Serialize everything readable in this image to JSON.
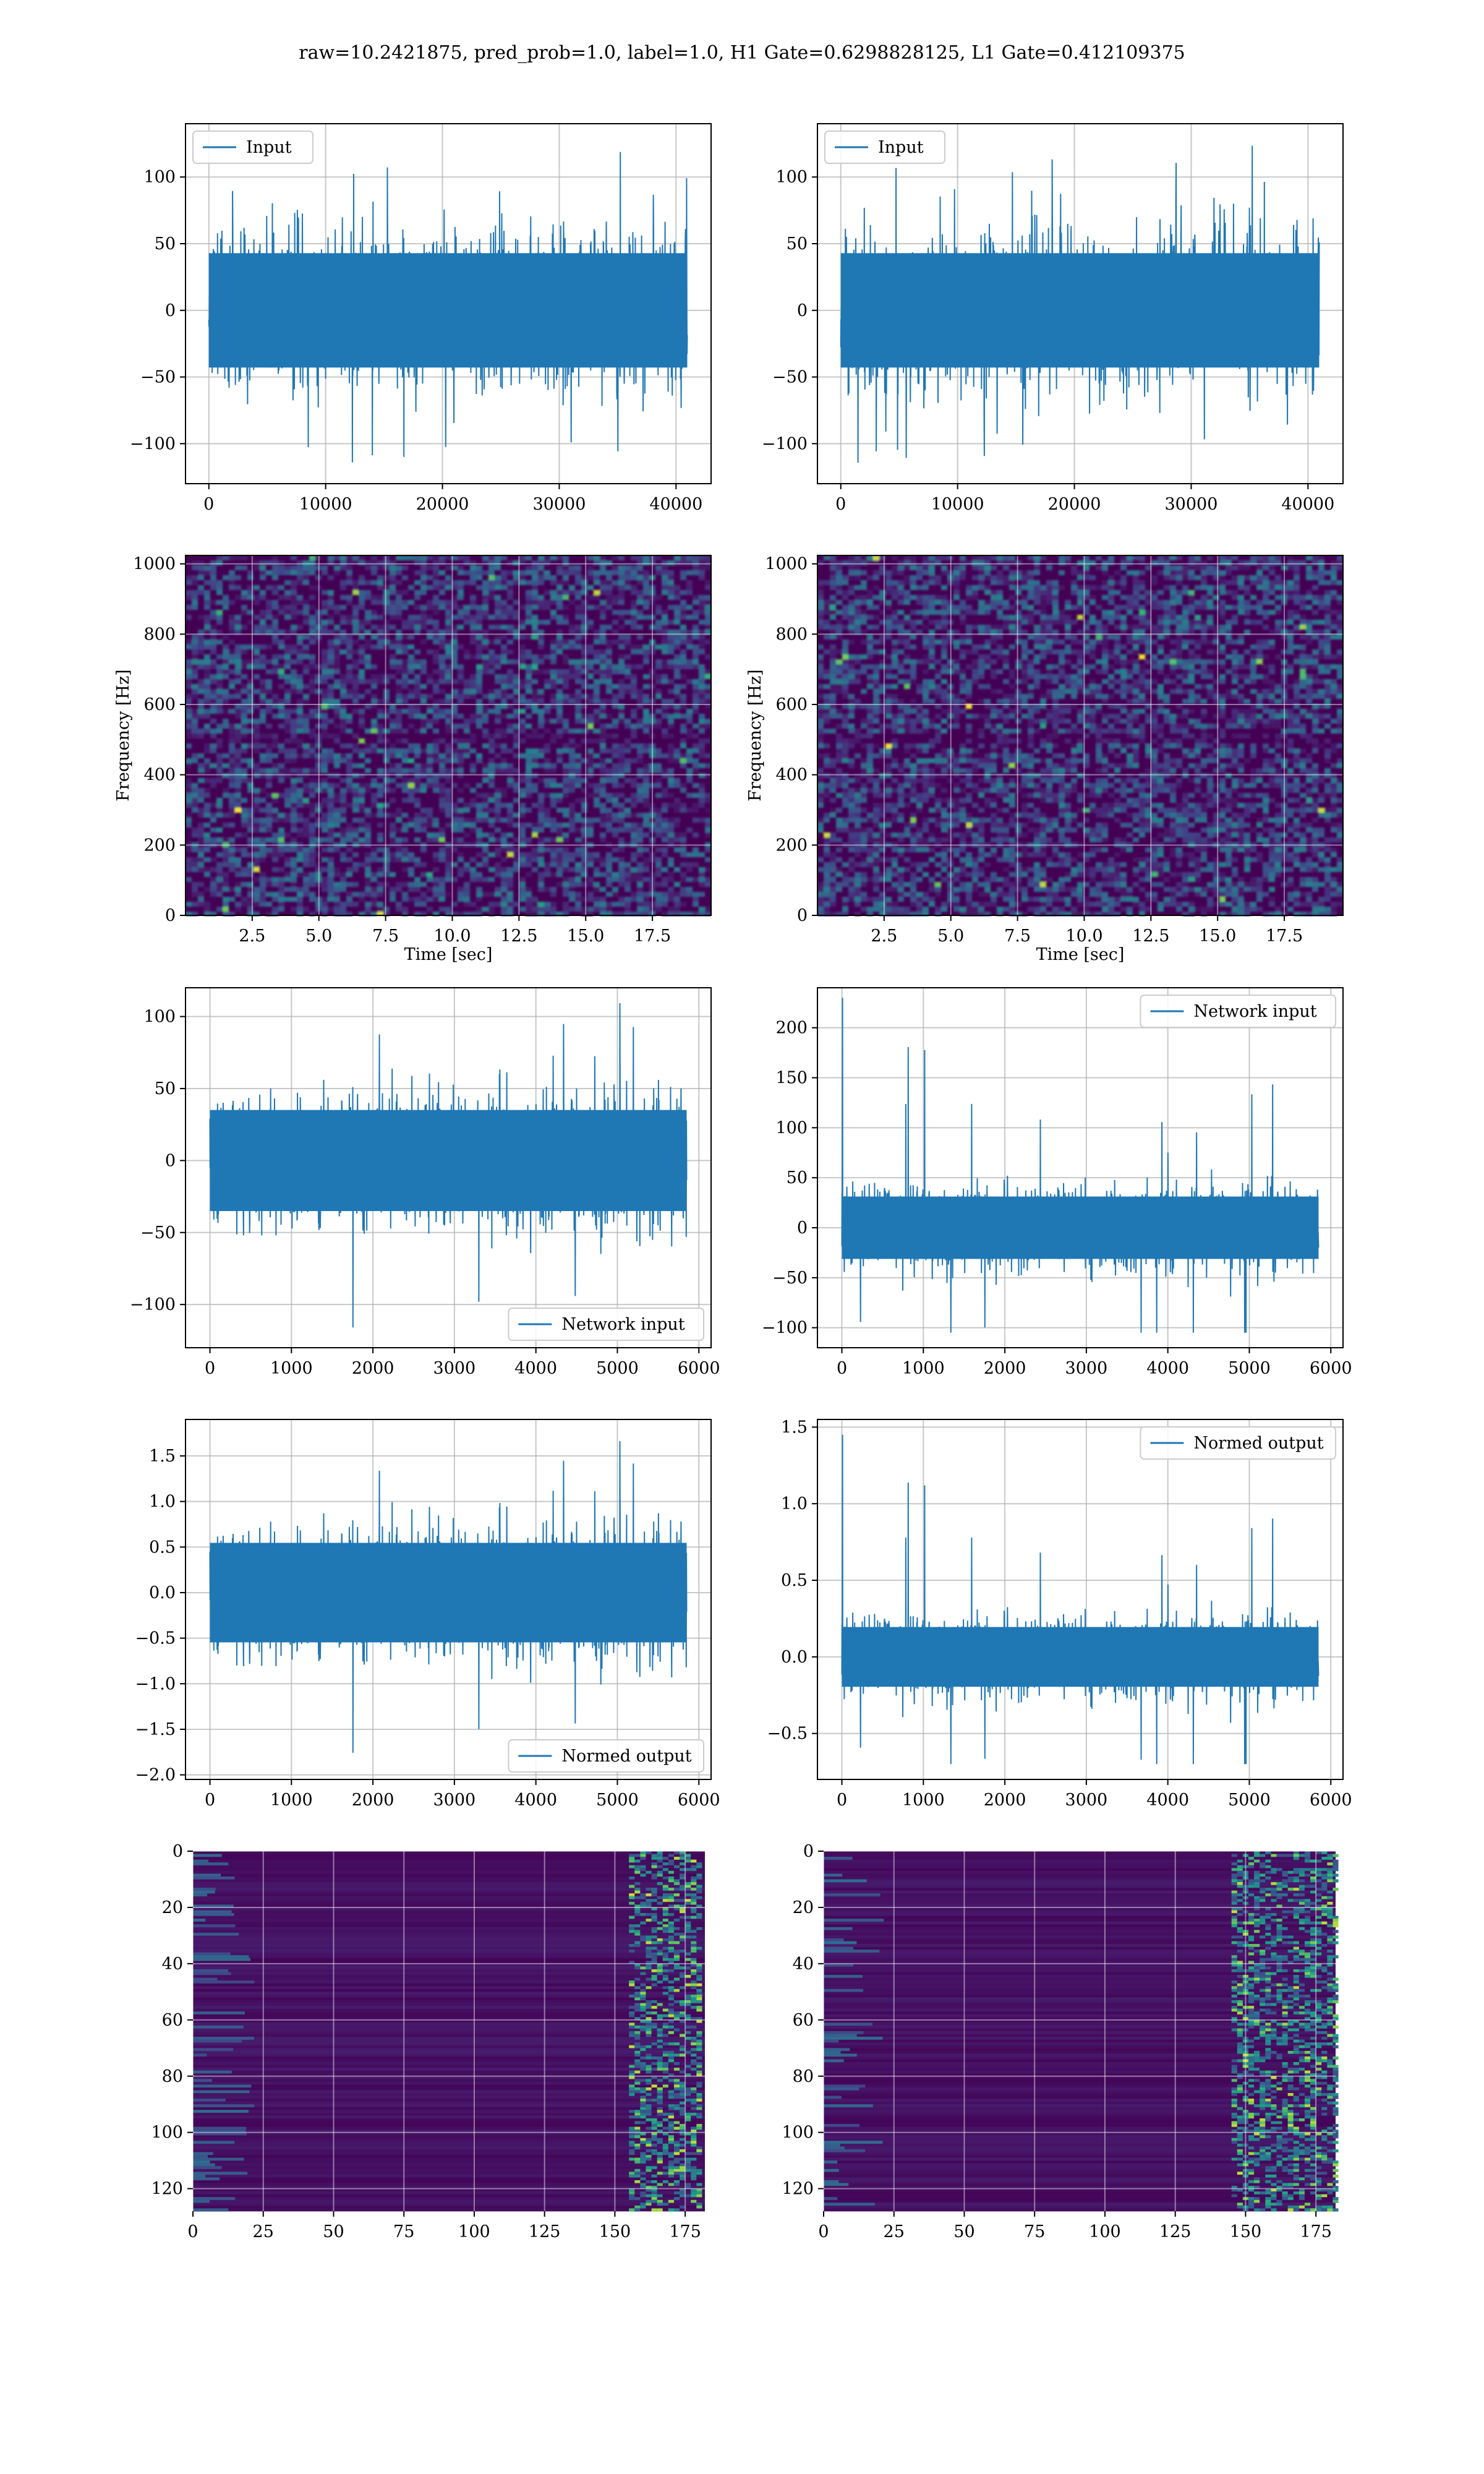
{
  "figure": {
    "title": "raw=10.2421875, pred_prob=1.0, label=1.0, H1 Gate=0.6298828125, L1 Gate=0.412109375",
    "colors": {
      "line": "#1f77b4",
      "grid": "#b0b0b0",
      "viridis_dark": "#440154",
      "viridis_mid": "#31688e",
      "viridis_green": "#35b779",
      "viridis_yellow": "#fde725"
    }
  },
  "chart_data": [
    {
      "id": "h1-input",
      "type": "line",
      "legend": [
        "Input"
      ],
      "legend_position": "top-left",
      "xlim": [
        -2000,
        43000
      ],
      "ylim": [
        -130,
        140
      ],
      "xticks": [
        0,
        10000,
        20000,
        30000,
        40000
      ],
      "yticks": [
        -100,
        -50,
        0,
        50,
        100
      ],
      "xlabel": "",
      "ylabel": "",
      "series": [
        {
          "name": "Input",
          "x_range": [
            0,
            40960
          ],
          "envelope_typical": [
            -55,
            55
          ],
          "envelope_peak": [
            -120,
            125
          ]
        }
      ]
    },
    {
      "id": "l1-input",
      "type": "line",
      "legend": [
        "Input"
      ],
      "legend_position": "top-left",
      "xlim": [
        -2000,
        43000
      ],
      "ylim": [
        -130,
        140
      ],
      "xticks": [
        0,
        10000,
        20000,
        30000,
        40000
      ],
      "yticks": [
        -100,
        -50,
        0,
        50,
        100
      ],
      "xlabel": "",
      "ylabel": "",
      "series": [
        {
          "name": "Input",
          "x_range": [
            0,
            40960
          ],
          "envelope_typical": [
            -55,
            55
          ],
          "envelope_peak": [
            -115,
            130
          ]
        }
      ]
    },
    {
      "id": "h1-spectrogram",
      "type": "heatmap",
      "xlim": [
        0,
        19.7
      ],
      "ylim": [
        0,
        1024
      ],
      "xticks": [
        2.5,
        5.0,
        7.5,
        10.0,
        12.5,
        15.0,
        17.5
      ],
      "yticks": [
        0,
        200,
        400,
        600,
        800,
        1000
      ],
      "xlabel": "Time [sec]",
      "ylabel": "Frequency [Hz]",
      "colormap": "viridis"
    },
    {
      "id": "l1-spectrogram",
      "type": "heatmap",
      "xlim": [
        0,
        19.7
      ],
      "ylim": [
        0,
        1024
      ],
      "xticks": [
        2.5,
        5.0,
        7.5,
        10.0,
        12.5,
        15.0,
        17.5
      ],
      "yticks": [
        0,
        200,
        400,
        600,
        800,
        1000
      ],
      "xlabel": "Time [sec]",
      "ylabel": "Frequency [Hz]",
      "colormap": "viridis"
    },
    {
      "id": "h1-network-input",
      "type": "line",
      "legend": [
        "Network input"
      ],
      "legend_position": "bottom-right",
      "xlim": [
        -300,
        6150
      ],
      "ylim": [
        -130,
        120
      ],
      "xticks": [
        0,
        1000,
        2000,
        3000,
        4000,
        5000,
        6000
      ],
      "yticks": [
        -100,
        -50,
        0,
        50,
        100
      ],
      "xlabel": "",
      "ylabel": "",
      "series": [
        {
          "name": "Network input",
          "x_range": [
            0,
            5850
          ],
          "envelope_typical": [
            -45,
            45
          ],
          "envelope_peak": [
            -122,
            115
          ]
        }
      ]
    },
    {
      "id": "l1-network-input",
      "type": "line",
      "legend": [
        "Network input"
      ],
      "legend_position": "top-right",
      "xlim": [
        -300,
        6150
      ],
      "ylim": [
        -120,
        240
      ],
      "xticks": [
        0,
        1000,
        2000,
        3000,
        4000,
        5000,
        6000
      ],
      "yticks": [
        -100,
        -50,
        0,
        50,
        100,
        150,
        200
      ],
      "xlabel": "",
      "ylabel": "",
      "series": [
        {
          "name": "Network input",
          "x_range": [
            0,
            5850
          ],
          "envelope_typical": [
            -40,
            40
          ],
          "envelope_peak": [
            -105,
            230
          ]
        }
      ]
    },
    {
      "id": "h1-normed-output",
      "type": "line",
      "legend": [
        "Normed output"
      ],
      "legend_position": "bottom-right",
      "xlim": [
        -300,
        6150
      ],
      "ylim": [
        -2.05,
        1.9
      ],
      "xticks": [
        0,
        1000,
        2000,
        3000,
        4000,
        5000,
        6000
      ],
      "yticks": [
        -2.0,
        -1.5,
        -1.0,
        -0.5,
        0.0,
        0.5,
        1.0,
        1.5
      ],
      "xlabel": "",
      "ylabel": "",
      "series": [
        {
          "name": "Normed output",
          "x_range": [
            0,
            5850
          ],
          "envelope_typical": [
            -0.7,
            0.7
          ],
          "envelope_peak": [
            -1.85,
            1.75
          ]
        }
      ]
    },
    {
      "id": "l1-normed-output",
      "type": "line",
      "legend": [
        "Normed output"
      ],
      "legend_position": "top-right",
      "xlim": [
        -300,
        6150
      ],
      "ylim": [
        -0.8,
        1.55
      ],
      "xticks": [
        0,
        1000,
        2000,
        3000,
        4000,
        5000,
        6000
      ],
      "yticks": [
        -0.5,
        0.0,
        0.5,
        1.0,
        1.5
      ],
      "xlabel": "",
      "ylabel": "",
      "series": [
        {
          "name": "Normed output",
          "x_range": [
            0,
            5850
          ],
          "envelope_typical": [
            -0.25,
            0.25
          ],
          "envelope_peak": [
            -0.7,
            1.45
          ]
        }
      ]
    },
    {
      "id": "h1-feature-map",
      "type": "heatmap",
      "xlim": [
        0,
        182
      ],
      "ylim": [
        128,
        0
      ],
      "xticks": [
        0,
        25,
        50,
        75,
        100,
        125,
        150,
        175
      ],
      "yticks": [
        0,
        20,
        40,
        60,
        80,
        100,
        120
      ],
      "xlabel": "",
      "ylabel": "",
      "colormap": "viridis",
      "hot_columns": [
        155,
        180
      ]
    },
    {
      "id": "l1-feature-map",
      "type": "heatmap",
      "xlim": [
        0,
        182
      ],
      "ylim": [
        128,
        0
      ],
      "xticks": [
        0,
        25,
        50,
        75,
        100,
        125,
        150,
        175
      ],
      "yticks": [
        0,
        20,
        40,
        60,
        80,
        100,
        120
      ],
      "xlabel": "",
      "ylabel": "",
      "colormap": "viridis",
      "hot_columns": [
        145,
        182
      ]
    }
  ]
}
